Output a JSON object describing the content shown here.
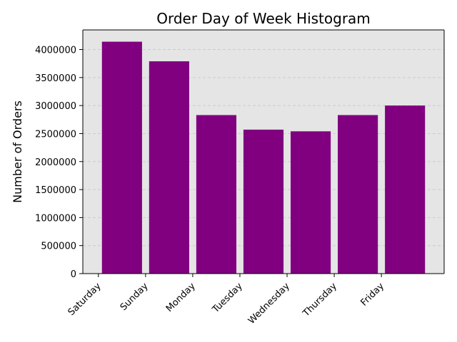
{
  "chart_data": {
    "type": "bar",
    "title": "Order Day of Week Histogram",
    "xlabel": "",
    "ylabel": "Number of Orders",
    "categories": [
      "Saturday",
      "Sunday",
      "Monday",
      "Tuesday",
      "Wednesday",
      "Thursday",
      "Friday"
    ],
    "bars": [
      {
        "x": 0.5,
        "value": 4140000
      },
      {
        "x": 1.5,
        "value": 3790000
      },
      {
        "x": 2.5,
        "value": 2830000
      },
      {
        "x": 3.5,
        "value": 2570000
      },
      {
        "x": 4.5,
        "value": 2540000
      },
      {
        "x": 5.5,
        "value": 2830000
      },
      {
        "x": 6.5,
        "value": 3000000
      }
    ],
    "bar_width": 0.85,
    "xlim": [
      -0.33,
      7.33
    ],
    "ylim": [
      0,
      4350000
    ],
    "yticks": [
      0,
      500000,
      1000000,
      1500000,
      2000000,
      2500000,
      3000000,
      3500000,
      4000000
    ],
    "ytick_labels": [
      "0",
      "500000",
      "1000000",
      "1500000",
      "2000000",
      "2500000",
      "3000000",
      "3500000",
      "4000000"
    ],
    "grid": true,
    "bar_color": "#800080",
    "plot_background": "#e5e5e5",
    "grid_color": "#cccccc"
  }
}
